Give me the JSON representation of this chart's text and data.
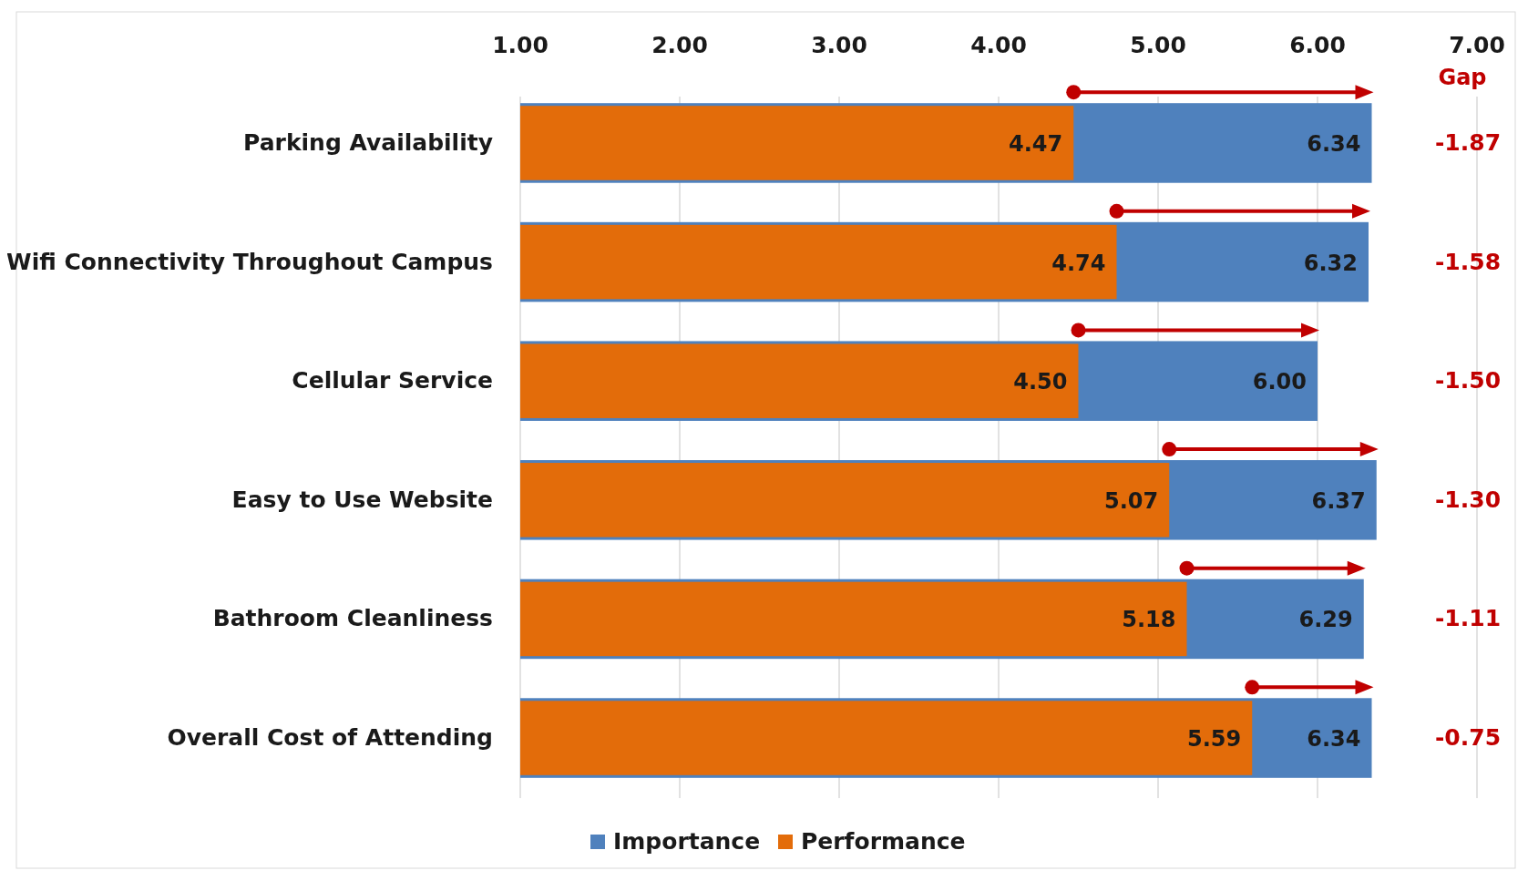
{
  "chart_data": {
    "type": "bar",
    "orientation": "horizontal",
    "categories": [
      "Parking Availability",
      "Wifi Connectivity Throughout Campus",
      "Cellular Service",
      "Easy to Use Website",
      "Bathroom Cleanliness",
      "Overall Cost of Attending"
    ],
    "series": [
      {
        "name": "Importance",
        "color": "#4f81bd",
        "values": [
          6.34,
          6.32,
          6.0,
          6.37,
          6.29,
          6.34
        ],
        "value_labels": [
          "6.34",
          "6.32",
          "6.00",
          "6.37",
          "6.29",
          "6.34"
        ]
      },
      {
        "name": "Performance",
        "color": "#e36c0a",
        "values": [
          4.47,
          4.74,
          4.5,
          5.07,
          5.18,
          5.59
        ],
        "value_labels": [
          "4.47",
          "4.74",
          "4.50",
          "5.07",
          "5.18",
          "5.59"
        ]
      }
    ],
    "xlim": [
      1,
      7
    ],
    "xticks": [
      {
        "value": 1,
        "label": "1.00"
      },
      {
        "value": 2,
        "label": "2.00"
      },
      {
        "value": 3,
        "label": "3.00"
      },
      {
        "value": 4,
        "label": "4.00"
      },
      {
        "value": 5,
        "label": "5.00"
      },
      {
        "value": 6,
        "label": "6.00"
      },
      {
        "value": 7,
        "label": "7.00"
      }
    ],
    "grid": "x",
    "legend": "bottom",
    "annotations": [
      "Gap",
      "-1.87",
      "-1.58",
      "-1.50",
      "-1.30",
      "-1.11",
      "-0.75"
    ]
  }
}
